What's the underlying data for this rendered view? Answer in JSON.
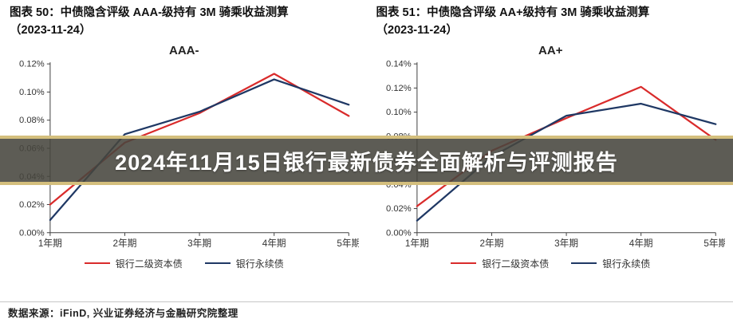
{
  "banner": {
    "text": "2024年11月15日银行最新债券全面解析与评测报告"
  },
  "footer": {
    "text": "数据来源：iFinD, 兴业证券经济与金融研究院整理"
  },
  "colors": {
    "series_red": "#d92b2b",
    "series_blue": "#1f3864",
    "banner_edge": "#d4bf7d",
    "banner_bg": "#47453d",
    "axis": "#444444",
    "text": "#333333"
  },
  "chart_data": [
    {
      "type": "line",
      "figure_label": "图表 50：中债隐含评级 AAA-级持有 3M 骑乘收益测算",
      "figure_date": "（2023-11-24）",
      "title": "AAA-",
      "categories": [
        "1年期",
        "2年期",
        "3年期",
        "4年期",
        "5年期"
      ],
      "series": [
        {
          "name": "银行二级资本债",
          "color": "#d92b2b",
          "values_pct": [
            0.02,
            0.064,
            0.085,
            0.113,
            0.083
          ]
        },
        {
          "name": "银行永续债",
          "color": "#1f3864",
          "values_pct": [
            0.009,
            0.07,
            0.086,
            0.109,
            0.091
          ]
        }
      ],
      "xlabel": "",
      "ylabel": "",
      "ylim_pct": [
        0,
        0.12
      ],
      "ytick_step_pct": 0.02,
      "ytick_labels": [
        "0.00%",
        "0.02%",
        "0.04%",
        "0.06%",
        "0.08%",
        "0.10%",
        "0.12%"
      ],
      "grid": false,
      "legend_position": "bottom"
    },
    {
      "type": "line",
      "figure_label": "图表 51：中债隐含评级 AA+级持有 3M 骑乘收益测算",
      "figure_date": "（2023-11-24）",
      "title": "AA+",
      "categories": [
        "1年期",
        "2年期",
        "3年期",
        "4年期",
        "5年期"
      ],
      "series": [
        {
          "name": "银行二级资本债",
          "color": "#d92b2b",
          "values_pct": [
            0.022,
            0.068,
            0.095,
            0.121,
            0.077
          ]
        },
        {
          "name": "银行永续债",
          "color": "#1f3864",
          "values_pct": [
            0.01,
            0.063,
            0.097,
            0.107,
            0.09
          ]
        }
      ],
      "xlabel": "",
      "ylabel": "",
      "ylim_pct": [
        0,
        0.14
      ],
      "ytick_step_pct": 0.02,
      "ytick_labels": [
        "0.00%",
        "0.02%",
        "0.04%",
        "0.06%",
        "0.08%",
        "0.10%",
        "0.12%",
        "0.14%"
      ],
      "grid": false,
      "legend_position": "bottom"
    }
  ]
}
